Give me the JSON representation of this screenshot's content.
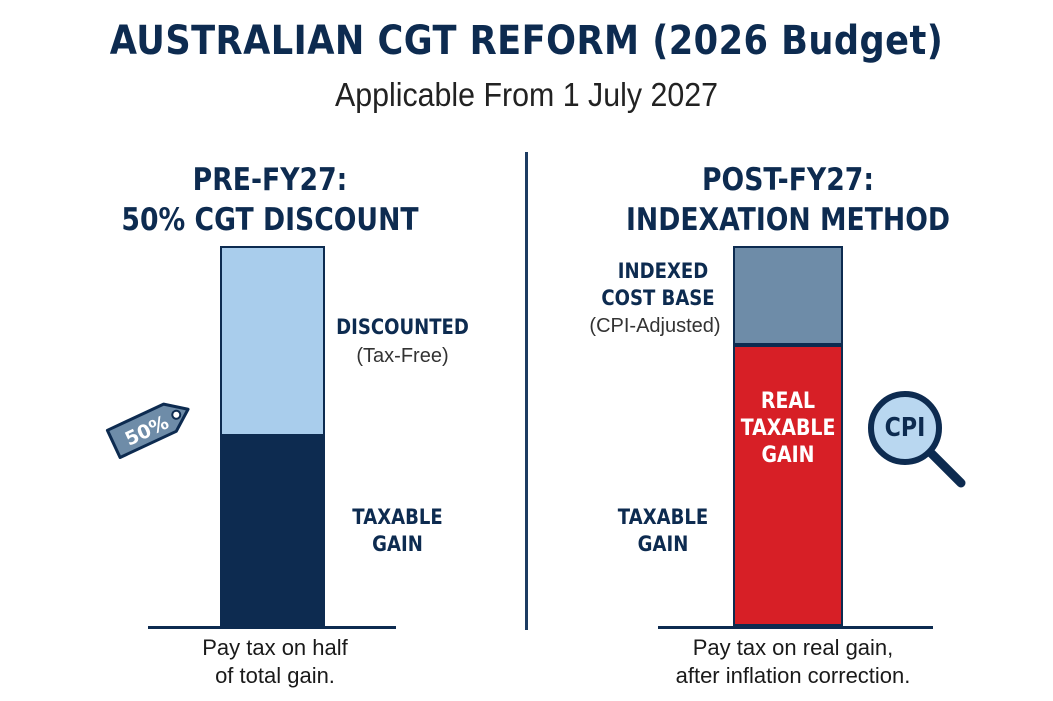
{
  "header": {
    "title": "AUSTRALIAN CGT REFORM (2026 Budget)",
    "subtitle": "Applicable From 1 July 2027"
  },
  "left_panel": {
    "heading_line1": "PRE-FY27:",
    "heading_line2": "50% CGT DISCOUNT",
    "discounted_label": "DISCOUNTED",
    "discounted_note": "(Tax-Free)",
    "taxable_line1": "TAXABLE",
    "taxable_line2": "GAIN",
    "tag_label": "50%",
    "caption_line1": "Pay tax on half",
    "caption_line2": "of total gain.",
    "taxable_fraction": 0.5
  },
  "right_panel": {
    "heading_line1": "POST-FY27:",
    "heading_line2": "INDEXATION METHOD",
    "indexed_line1": "INDEXED",
    "indexed_line2": "COST BASE",
    "indexed_note": "(CPI-Adjusted)",
    "real_line1": "REAL",
    "real_line2": "TAXABLE",
    "real_line3": "GAIN",
    "taxable_line1": "TAXABLE",
    "taxable_line2": "GAIN",
    "magnifier_label": "CPI",
    "caption_line1": "Pay tax on real gain,",
    "caption_line2": "after inflation correction.",
    "taxable_fraction": 0.74
  },
  "colors": {
    "navy": "#0d2b50",
    "light_blue": "#a9cdec",
    "steel_blue": "#6e8ca8",
    "red": "#d71f26"
  }
}
